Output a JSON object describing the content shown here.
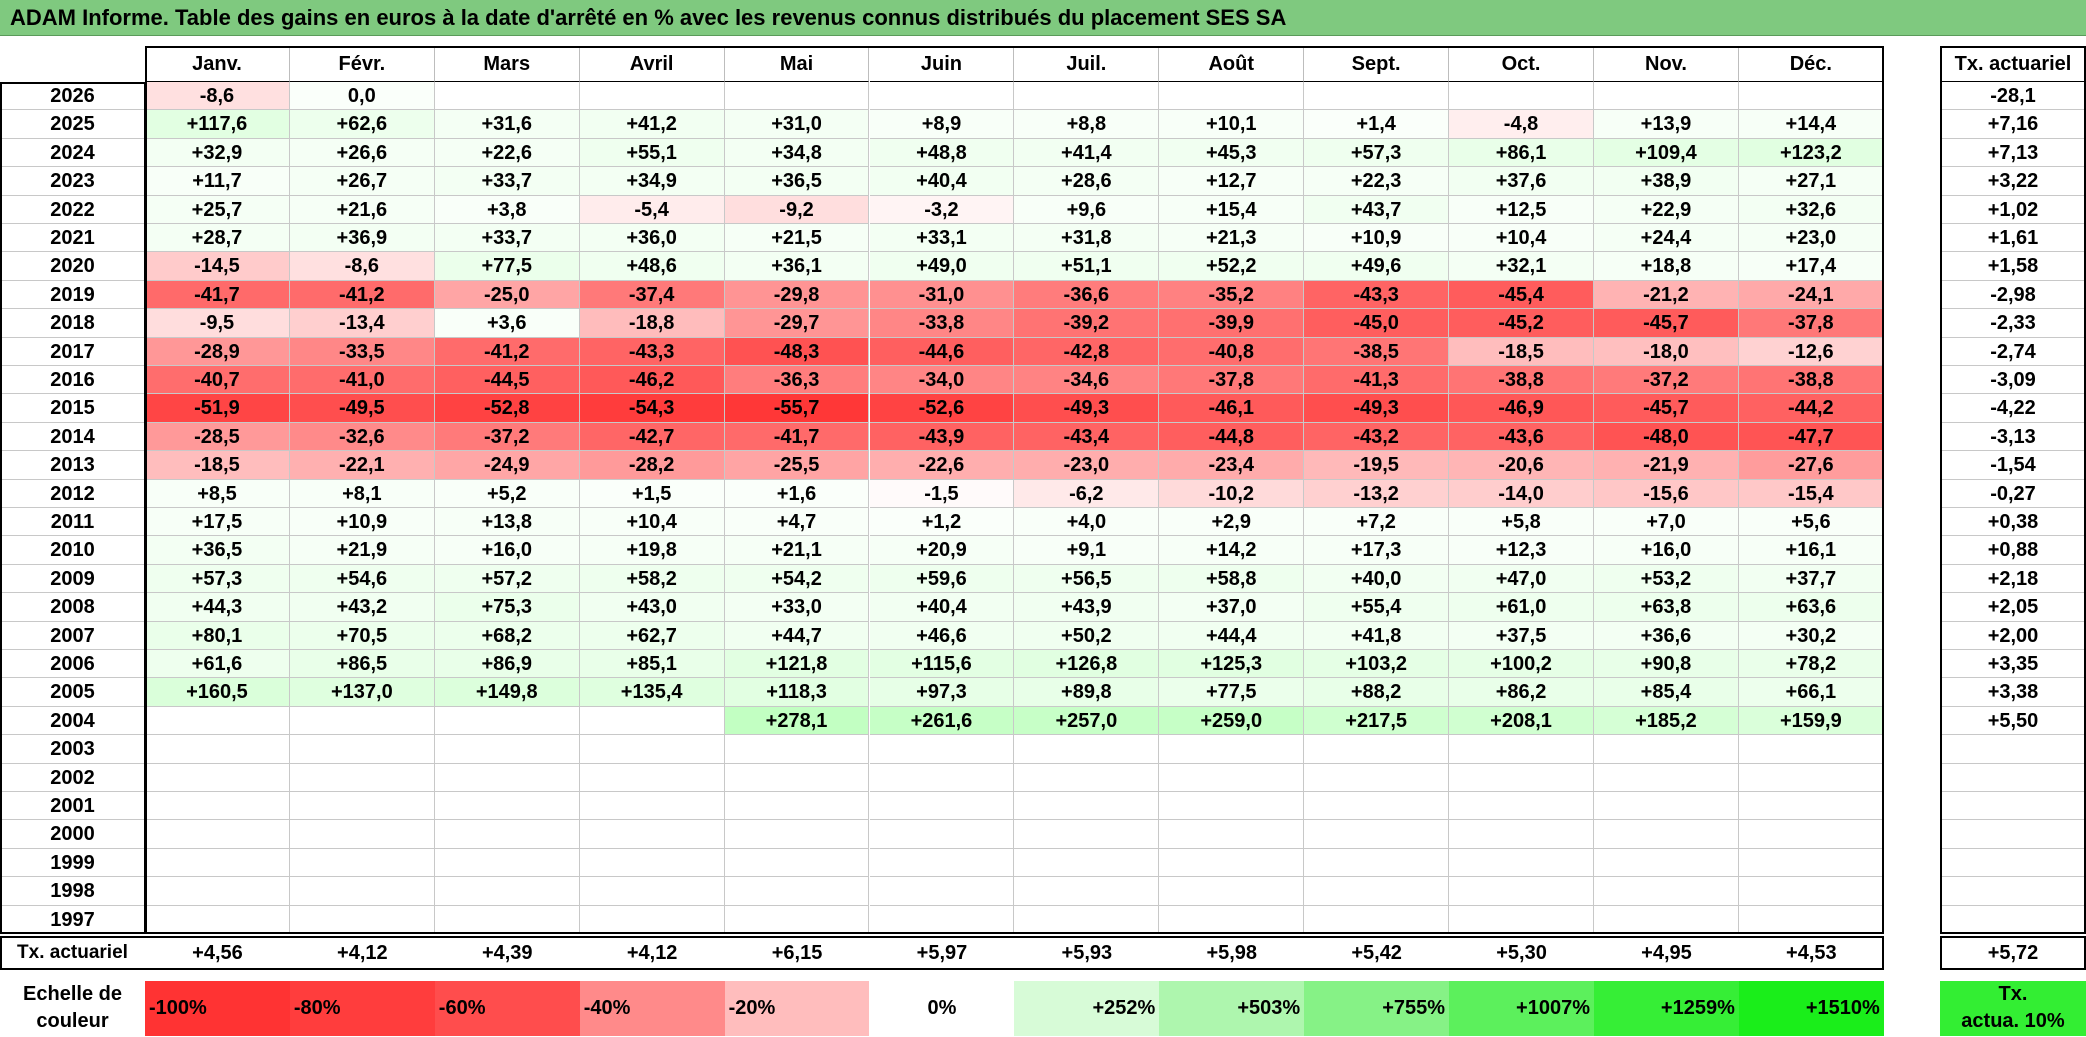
{
  "title": "ADAM Informe. Table des gains en euros à la date d'arrêté en % avec les revenus connus distribués du placement SES SA",
  "months": [
    "Janv.",
    "Févr.",
    "Mars",
    "Avril",
    "Mai",
    "Juin",
    "Juil.",
    "Août",
    "Sept.",
    "Oct.",
    "Nov.",
    "Déc."
  ],
  "summary_header": "Tx. actuariel",
  "rows": [
    {
      "year": "2026",
      "values": [
        "-8,6",
        "0,0",
        "",
        "",
        "",
        "",
        "",
        "",
        "",
        "",
        "",
        ""
      ],
      "tx": "-28,1"
    },
    {
      "year": "2025",
      "values": [
        "+117,6",
        "+62,6",
        "+31,6",
        "+41,2",
        "+31,0",
        "+8,9",
        "+8,8",
        "+10,1",
        "+1,4",
        "-4,8",
        "+13,9",
        "+14,4"
      ],
      "tx": "+7,16"
    },
    {
      "year": "2024",
      "values": [
        "+32,9",
        "+26,6",
        "+22,6",
        "+55,1",
        "+34,8",
        "+48,8",
        "+41,4",
        "+45,3",
        "+57,3",
        "+86,1",
        "+109,4",
        "+123,2"
      ],
      "tx": "+7,13"
    },
    {
      "year": "2023",
      "values": [
        "+11,7",
        "+26,7",
        "+33,7",
        "+34,9",
        "+36,5",
        "+40,4",
        "+28,6",
        "+12,7",
        "+22,3",
        "+37,6",
        "+38,9",
        "+27,1"
      ],
      "tx": "+3,22"
    },
    {
      "year": "2022",
      "values": [
        "+25,7",
        "+21,6",
        "+3,8",
        "-5,4",
        "-9,2",
        "-3,2",
        "+9,6",
        "+15,4",
        "+43,7",
        "+12,5",
        "+22,9",
        "+32,6"
      ],
      "tx": "+1,02"
    },
    {
      "year": "2021",
      "values": [
        "+28,7",
        "+36,9",
        "+33,7",
        "+36,0",
        "+21,5",
        "+33,1",
        "+31,8",
        "+21,3",
        "+10,9",
        "+10,4",
        "+24,4",
        "+23,0"
      ],
      "tx": "+1,61"
    },
    {
      "year": "2020",
      "values": [
        "-14,5",
        "-8,6",
        "+77,5",
        "+48,6",
        "+36,1",
        "+49,0",
        "+51,1",
        "+52,2",
        "+49,6",
        "+32,1",
        "+18,8",
        "+17,4"
      ],
      "tx": "+1,58"
    },
    {
      "year": "2019",
      "values": [
        "-41,7",
        "-41,2",
        "-25,0",
        "-37,4",
        "-29,8",
        "-31,0",
        "-36,6",
        "-35,2",
        "-43,3",
        "-45,4",
        "-21,2",
        "-24,1"
      ],
      "tx": "-2,98"
    },
    {
      "year": "2018",
      "values": [
        "-9,5",
        "-13,4",
        "+3,6",
        "-18,8",
        "-29,7",
        "-33,8",
        "-39,2",
        "-39,9",
        "-45,0",
        "-45,2",
        "-45,7",
        "-37,8"
      ],
      "tx": "-2,33"
    },
    {
      "year": "2017",
      "values": [
        "-28,9",
        "-33,5",
        "-41,2",
        "-43,3",
        "-48,3",
        "-44,6",
        "-42,8",
        "-40,8",
        "-38,5",
        "-18,5",
        "-18,0",
        "-12,6"
      ],
      "tx": "-2,74"
    },
    {
      "year": "2016",
      "values": [
        "-40,7",
        "-41,0",
        "-44,5",
        "-46,2",
        "-36,3",
        "-34,0",
        "-34,6",
        "-37,8",
        "-41,3",
        "-38,8",
        "-37,2",
        "-38,8"
      ],
      "tx": "-3,09"
    },
    {
      "year": "2015",
      "values": [
        "-51,9",
        "-49,5",
        "-52,8",
        "-54,3",
        "-55,7",
        "-52,6",
        "-49,3",
        "-46,1",
        "-49,3",
        "-46,9",
        "-45,7",
        "-44,2"
      ],
      "tx": "-4,22"
    },
    {
      "year": "2014",
      "values": [
        "-28,5",
        "-32,6",
        "-37,2",
        "-42,7",
        "-41,7",
        "-43,9",
        "-43,4",
        "-44,8",
        "-43,2",
        "-43,6",
        "-48,0",
        "-47,7"
      ],
      "tx": "-3,13"
    },
    {
      "year": "2013",
      "values": [
        "-18,5",
        "-22,1",
        "-24,9",
        "-28,2",
        "-25,5",
        "-22,6",
        "-23,0",
        "-23,4",
        "-19,5",
        "-20,6",
        "-21,9",
        "-27,6"
      ],
      "tx": "-1,54"
    },
    {
      "year": "2012",
      "values": [
        "+8,5",
        "+8,1",
        "+5,2",
        "+1,5",
        "+1,6",
        "-1,5",
        "-6,2",
        "-10,2",
        "-13,2",
        "-14,0",
        "-15,6",
        "-15,4"
      ],
      "tx": "-0,27"
    },
    {
      "year": "2011",
      "values": [
        "+17,5",
        "+10,9",
        "+13,8",
        "+10,4",
        "+4,7",
        "+1,2",
        "+4,0",
        "+2,9",
        "+7,2",
        "+5,8",
        "+7,0",
        "+5,6"
      ],
      "tx": "+0,38"
    },
    {
      "year": "2010",
      "values": [
        "+36,5",
        "+21,9",
        "+16,0",
        "+19,8",
        "+21,1",
        "+20,9",
        "+9,1",
        "+14,2",
        "+17,3",
        "+12,3",
        "+16,0",
        "+16,1"
      ],
      "tx": "+0,88"
    },
    {
      "year": "2009",
      "values": [
        "+57,3",
        "+54,6",
        "+57,2",
        "+58,2",
        "+54,2",
        "+59,6",
        "+56,5",
        "+58,8",
        "+40,0",
        "+47,0",
        "+53,2",
        "+37,7"
      ],
      "tx": "+2,18"
    },
    {
      "year": "2008",
      "values": [
        "+44,3",
        "+43,2",
        "+75,3",
        "+43,0",
        "+33,0",
        "+40,4",
        "+43,9",
        "+37,0",
        "+55,4",
        "+61,0",
        "+63,8",
        "+63,6"
      ],
      "tx": "+2,05"
    },
    {
      "year": "2007",
      "values": [
        "+80,1",
        "+70,5",
        "+68,2",
        "+62,7",
        "+44,7",
        "+46,6",
        "+50,2",
        "+44,4",
        "+41,8",
        "+37,5",
        "+36,6",
        "+30,2"
      ],
      "tx": "+2,00"
    },
    {
      "year": "2006",
      "values": [
        "+61,6",
        "+86,5",
        "+86,9",
        "+85,1",
        "+121,8",
        "+115,6",
        "+126,8",
        "+125,3",
        "+103,2",
        "+100,2",
        "+90,8",
        "+78,2"
      ],
      "tx": "+3,35"
    },
    {
      "year": "2005",
      "values": [
        "+160,5",
        "+137,0",
        "+149,8",
        "+135,4",
        "+118,3",
        "+97,3",
        "+89,8",
        "+77,5",
        "+88,2",
        "+86,2",
        "+85,4",
        "+66,1"
      ],
      "tx": "+3,38"
    },
    {
      "year": "2004",
      "values": [
        "",
        "",
        "",
        "",
        "+278,1",
        "+261,6",
        "+257,0",
        "+259,0",
        "+217,5",
        "+208,1",
        "+185,2",
        "+159,9"
      ],
      "tx": "+5,50"
    },
    {
      "year": "2003",
      "values": [
        "",
        "",
        "",
        "",
        "",
        "",
        "",
        "",
        "",
        "",
        "",
        ""
      ],
      "tx": ""
    },
    {
      "year": "2002",
      "values": [
        "",
        "",
        "",
        "",
        "",
        "",
        "",
        "",
        "",
        "",
        "",
        ""
      ],
      "tx": ""
    },
    {
      "year": "2001",
      "values": [
        "",
        "",
        "",
        "",
        "",
        "",
        "",
        "",
        "",
        "",
        "",
        ""
      ],
      "tx": ""
    },
    {
      "year": "2000",
      "values": [
        "",
        "",
        "",
        "",
        "",
        "",
        "",
        "",
        "",
        "",
        "",
        ""
      ],
      "tx": ""
    },
    {
      "year": "1999",
      "values": [
        "",
        "",
        "",
        "",
        "",
        "",
        "",
        "",
        "",
        "",
        "",
        ""
      ],
      "tx": ""
    },
    {
      "year": "1998",
      "values": [
        "",
        "",
        "",
        "",
        "",
        "",
        "",
        "",
        "",
        "",
        "",
        ""
      ],
      "tx": ""
    },
    {
      "year": "1997",
      "values": [
        "",
        "",
        "",
        "",
        "",
        "",
        "",
        "",
        "",
        "",
        "",
        ""
      ],
      "tx": ""
    }
  ],
  "footer": {
    "label": "Tx. actuariel",
    "values": [
      "+4,56",
      "+4,12",
      "+4,39",
      "+4,12",
      "+6,15",
      "+5,97",
      "+5,93",
      "+5,98",
      "+5,42",
      "+5,30",
      "+4,95",
      "+4,53"
    ],
    "total": "+5,72"
  },
  "scale": {
    "label_line1": "Echelle de",
    "label_line2": "couleur",
    "steps": [
      {
        "text": "-100%",
        "color": "#ff3333"
      },
      {
        "text": "-80%",
        "color": "#ff3d3d"
      },
      {
        "text": "-60%",
        "color": "#ff4d4d"
      },
      {
        "text": "-40%",
        "color": "#ff8a8a"
      },
      {
        "text": "-20%",
        "color": "#ffbdbd"
      },
      {
        "text": "0%",
        "color": "#ffffff"
      },
      {
        "text": "+252%",
        "color": "#d7fbd7"
      },
      {
        "text": "+503%",
        "color": "#aef6ae"
      },
      {
        "text": "+755%",
        "color": "#86f286"
      },
      {
        "text": "+1007%",
        "color": "#5cf05c"
      },
      {
        "text": "+1259%",
        "color": "#36ee36"
      },
      {
        "text": "+1510%",
        "color": "#1aee1a"
      }
    ],
    "tx_line1": "Tx.",
    "tx_line2": "actua. 10%",
    "tx_color": "#33ee33"
  }
}
